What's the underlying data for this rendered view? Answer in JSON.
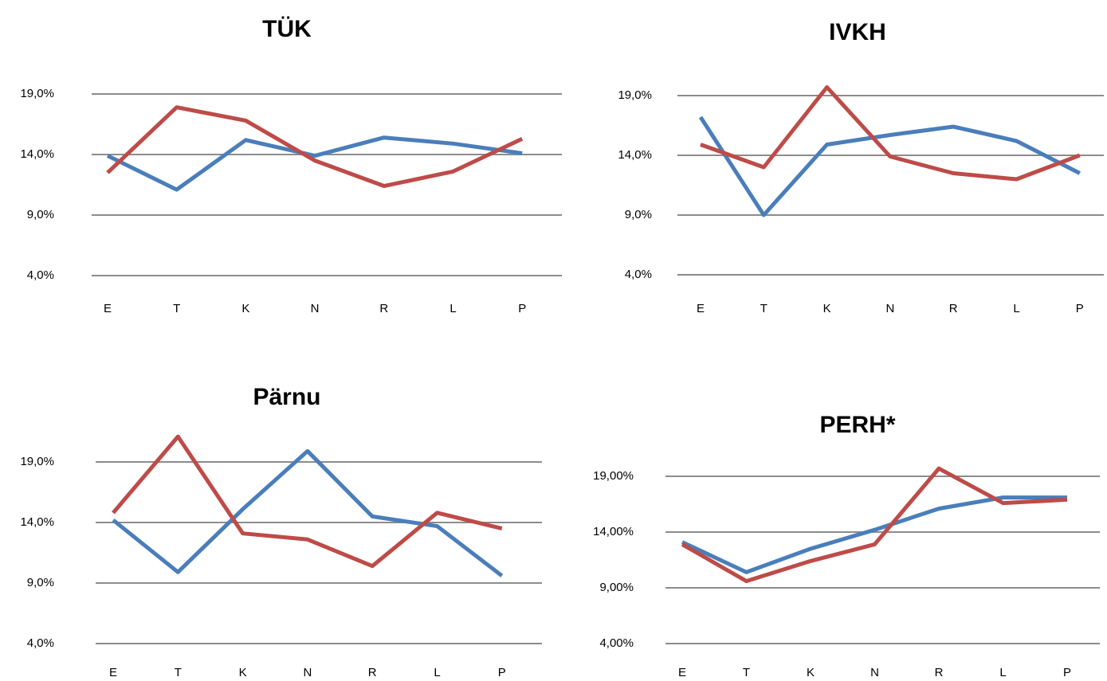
{
  "chart_data": [
    {
      "type": "line",
      "title": "TÜK",
      "categories": [
        "E",
        "T",
        "K",
        "N",
        "R",
        "L",
        "P"
      ],
      "series": [
        {
          "color": "#4a7ebb",
          "values": [
            13.9,
            11.1,
            15.2,
            13.9,
            15.4,
            14.9,
            14.1
          ]
        },
        {
          "color": "#be4b48",
          "values": [
            12.5,
            17.9,
            16.8,
            13.5,
            11.4,
            12.6,
            15.3
          ]
        }
      ],
      "ylim": [
        4,
        22
      ],
      "yticks": [
        {
          "value": 4,
          "label": "4,0%"
        },
        {
          "value": 9,
          "label": "9,0%"
        },
        {
          "value": 14,
          "label": "14,0%"
        },
        {
          "value": 19,
          "label": "19,0%"
        }
      ],
      "grid": true
    },
    {
      "type": "line",
      "title": "IVKH",
      "categories": [
        "E",
        "T",
        "K",
        "N",
        "R",
        "L",
        "P"
      ],
      "series": [
        {
          "color": "#4a7ebb",
          "values": [
            17.2,
            9.0,
            14.9,
            15.7,
            16.4,
            15.2,
            12.5
          ]
        },
        {
          "color": "#be4b48",
          "values": [
            14.9,
            13.0,
            19.7,
            13.9,
            12.5,
            12.0,
            14.0
          ]
        }
      ],
      "ylim": [
        4,
        22
      ],
      "yticks": [
        {
          "value": 4,
          "label": "4,0%"
        },
        {
          "value": 9,
          "label": "9,0%"
        },
        {
          "value": 14,
          "label": "14,0%"
        },
        {
          "value": 19,
          "label": "19,0%"
        }
      ],
      "grid": true
    },
    {
      "type": "line",
      "title": "Pärnu",
      "categories": [
        "E",
        "T",
        "K",
        "N",
        "R",
        "L",
        "P"
      ],
      "series": [
        {
          "color": "#4a7ebb",
          "values": [
            14.2,
            9.9,
            15.1,
            19.9,
            14.5,
            13.7,
            9.6
          ]
        },
        {
          "color": "#be4b48",
          "values": [
            14.8,
            21.1,
            13.1,
            12.6,
            10.4,
            14.8,
            13.5
          ]
        }
      ],
      "ylim": [
        4,
        22
      ],
      "yticks": [
        {
          "value": 4,
          "label": "4,0%"
        },
        {
          "value": 9,
          "label": "9,0%"
        },
        {
          "value": 14,
          "label": "14,0%"
        },
        {
          "value": 19,
          "label": "19,0%"
        }
      ],
      "grid": true
    },
    {
      "type": "line",
      "title": "PERH*",
      "categories": [
        "E",
        "T",
        "K",
        "N",
        "R",
        "L",
        "P"
      ],
      "series": [
        {
          "color": "#4a7ebb",
          "values": [
            13.1,
            10.4,
            12.5,
            14.2,
            16.1,
            17.1,
            17.1
          ]
        },
        {
          "color": "#be4b48",
          "values": [
            12.9,
            9.6,
            11.4,
            12.9,
            19.7,
            16.6,
            16.9
          ]
        }
      ],
      "ylim": [
        4,
        22
      ],
      "yticks": [
        {
          "value": 4,
          "label": "4,00%"
        },
        {
          "value": 9,
          "label": "9,00%"
        },
        {
          "value": 14,
          "label": "14,00%"
        },
        {
          "value": 19,
          "label": "19,00%"
        }
      ],
      "grid": true
    }
  ]
}
